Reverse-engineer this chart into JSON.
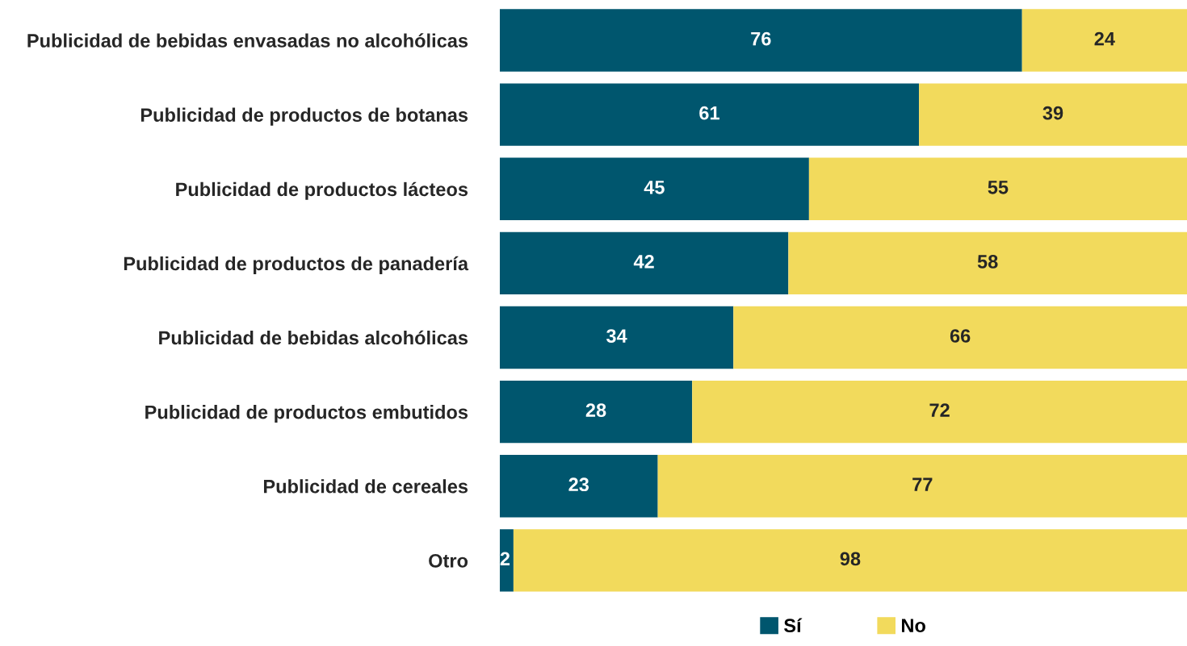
{
  "chart_data": {
    "type": "bar",
    "orientation": "horizontal",
    "stacked": true,
    "data_labels": true,
    "legend": "bottom",
    "grid": false,
    "tick_labels": "y",
    "categories": [
      "Publicidad de bebidas envasadas no alcohólicas",
      "Publicidad de productos de botanas",
      "Publicidad de productos lácteos",
      "Publicidad de productos de panadería",
      "Publicidad de bebidas alcohólicas",
      "Publicidad de productos embutidos",
      "Publicidad de cereales",
      "Otro"
    ],
    "series": [
      {
        "name": "Sí",
        "color": "#00566e",
        "values": [
          76,
          61,
          45,
          42,
          34,
          28,
          23,
          2
        ]
      },
      {
        "name": "No",
        "color": "#f2da5c",
        "values": [
          24,
          39,
          55,
          58,
          66,
          72,
          77,
          98
        ]
      }
    ]
  }
}
